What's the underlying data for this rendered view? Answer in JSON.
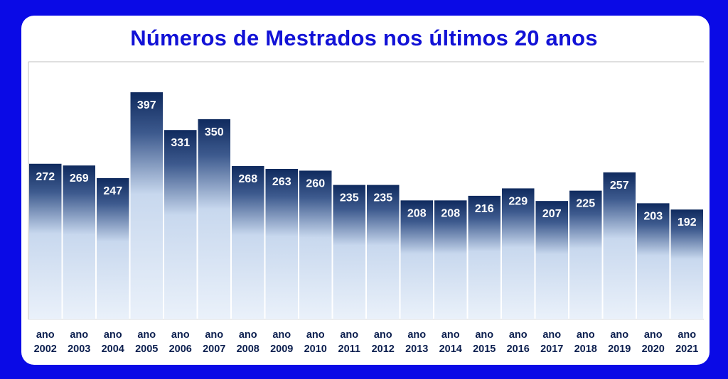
{
  "chart_data": {
    "type": "bar",
    "title": "Números de Mestrados nos últimos 20 anos",
    "categories": [
      [
        "ano",
        "2002"
      ],
      [
        "ano",
        "2003"
      ],
      [
        "ano",
        "2004"
      ],
      [
        "ano",
        "2005"
      ],
      [
        "ano",
        "2006"
      ],
      [
        "ano",
        "2007"
      ],
      [
        "ano",
        "2008"
      ],
      [
        "ano",
        "2009"
      ],
      [
        "ano",
        "2010"
      ],
      [
        "ano",
        "2011"
      ],
      [
        "ano",
        "2012"
      ],
      [
        "ano",
        "2013"
      ],
      [
        "ano",
        "2014"
      ],
      [
        "ano",
        "2015"
      ],
      [
        "ano",
        "2016"
      ],
      [
        "ano",
        "2017"
      ],
      [
        "ano",
        "2018"
      ],
      [
        "ano",
        "2019"
      ],
      [
        "ano",
        "2020"
      ],
      [
        "ano",
        "2021"
      ]
    ],
    "values": [
      272,
      269,
      247,
      397,
      331,
      350,
      268,
      263,
      260,
      235,
      235,
      208,
      208,
      216,
      229,
      207,
      225,
      257,
      203,
      192
    ],
    "ylim": [
      0,
      440
    ],
    "grid": false,
    "legend": "none",
    "colors": {
      "bar_top": "#0f2a5e",
      "bar_bottom": "#e8f0fa",
      "label": "#ffffff",
      "title": "#1212d6",
      "border": "#0a0ae6"
    }
  }
}
